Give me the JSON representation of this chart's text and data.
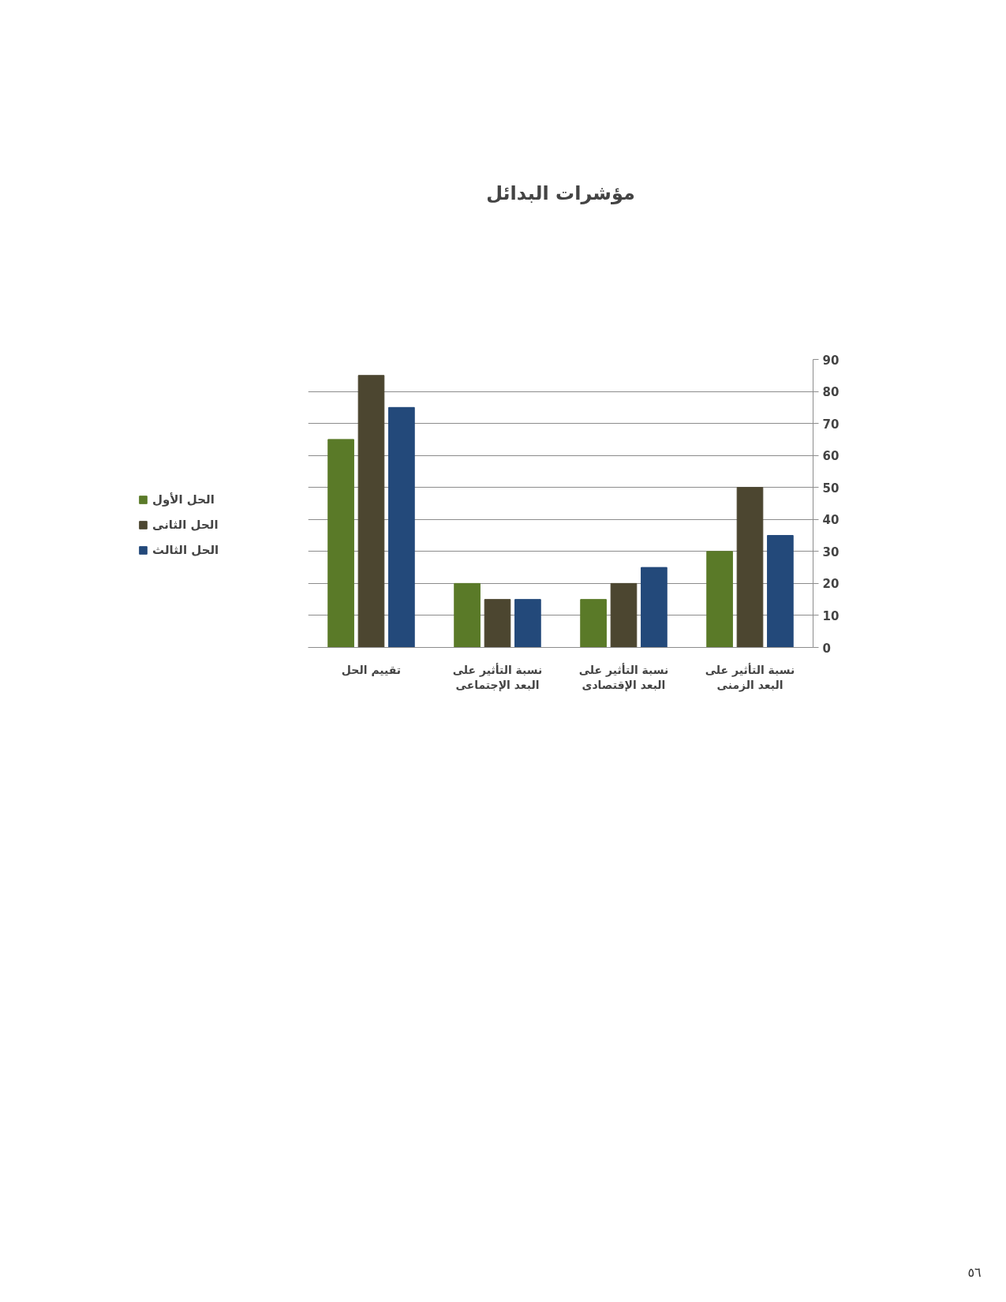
{
  "chart_data": {
    "type": "bar",
    "title": "مؤشرات البدائل",
    "categories": [
      "تقييم الحل",
      "نسبة التأثير على البعد الإجتماعى",
      "نسبة التأثير على البعد الإقتصادى",
      "نسبة التأثير على البعد الزمنى"
    ],
    "series": [
      {
        "name": "الحل الأول",
        "color": "#5a7a28",
        "values": [
          65,
          20,
          15,
          30
        ]
      },
      {
        "name": "الحل الثانى",
        "color": "#4c4630",
        "values": [
          85,
          15,
          20,
          50
        ]
      },
      {
        "name": "الحل الثالث",
        "color": "#23497a",
        "values": [
          75,
          15,
          25,
          35
        ]
      }
    ],
    "ylim": [
      0,
      90
    ],
    "yticks": [
      0,
      10,
      20,
      30,
      40,
      50,
      60,
      70,
      80,
      90
    ],
    "grid": "y",
    "legend": "left",
    "annotations": [
      "٥٦"
    ]
  }
}
